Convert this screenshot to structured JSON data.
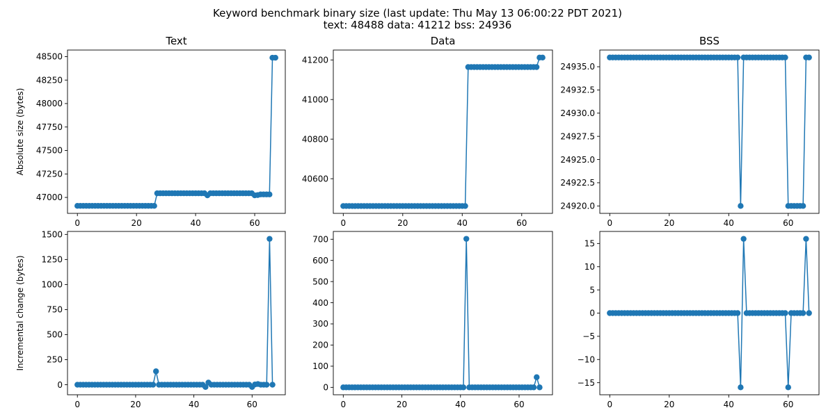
{
  "figure": {
    "title_line1": "Keyword benchmark binary size (last update: Thu May 13 06:00:22 PDT 2021)",
    "title_line2": "text: 48488 data: 41212 bss: 24936"
  },
  "chart_data": [
    {
      "id": "text_abs",
      "type": "line",
      "title": "Text",
      "ylabel": "Absolute size (bytes)",
      "xlabel": "",
      "xlim": [
        -3.35,
        70.35
      ],
      "ylim": [
        46830,
        48570
      ],
      "xticks": [
        0,
        20,
        40,
        60
      ],
      "yticks": [
        47000,
        47250,
        47500,
        47750,
        48000,
        48250,
        48500
      ],
      "ytick_labels": [
        "47000",
        "47250",
        "47500",
        "47750",
        "48000",
        "48250",
        "48500"
      ],
      "line_color": "#1f77b4",
      "markers": true,
      "grid": false,
      "segments": [
        {
          "from": 0,
          "to": 26,
          "value": 46910
        },
        {
          "from": 27,
          "to": 43,
          "value": 47044
        },
        {
          "from": 44,
          "to": 44,
          "value": 47022
        },
        {
          "from": 45,
          "to": 59,
          "value": 47044
        },
        {
          "from": 60,
          "to": 60,
          "value": 47022
        },
        {
          "from": 61,
          "to": 61,
          "value": 47025
        },
        {
          "from": 62,
          "to": 65,
          "value": 47032
        },
        {
          "from": 66,
          "to": 67,
          "value": 48488
        }
      ]
    },
    {
      "id": "data_abs",
      "type": "line",
      "title": "Data",
      "ylabel": "",
      "xlabel": "",
      "xlim": [
        -3.35,
        70.35
      ],
      "ylim": [
        40425,
        41250
      ],
      "xticks": [
        0,
        20,
        40,
        60
      ],
      "yticks": [
        40600,
        40800,
        41000,
        41200
      ],
      "ytick_labels": [
        "40600",
        "40800",
        "41000",
        "41200"
      ],
      "line_color": "#1f77b4",
      "markers": true,
      "grid": false,
      "segments": [
        {
          "from": 0,
          "to": 41,
          "value": 40462
        },
        {
          "from": 42,
          "to": 65,
          "value": 41164
        },
        {
          "from": 66,
          "to": 67,
          "value": 41212
        }
      ]
    },
    {
      "id": "bss_abs",
      "type": "line",
      "title": "BSS",
      "ylabel": "",
      "xlabel": "",
      "xlim": [
        -3.35,
        70.35
      ],
      "ylim": [
        24919.2,
        24936.8
      ],
      "xticks": [
        0,
        20,
        40,
        60
      ],
      "yticks": [
        24920.0,
        24922.5,
        24925.0,
        24927.5,
        24930.0,
        24932.5,
        24935.0
      ],
      "ytick_labels": [
        "24920.0",
        "24922.5",
        "24925.0",
        "24927.5",
        "24930.0",
        "24932.5",
        "24935.0"
      ],
      "line_color": "#1f77b4",
      "markers": true,
      "grid": false,
      "segments": [
        {
          "from": 0,
          "to": 43,
          "value": 24936
        },
        {
          "from": 44,
          "to": 44,
          "value": 24920
        },
        {
          "from": 45,
          "to": 59,
          "value": 24936
        },
        {
          "from": 60,
          "to": 65,
          "value": 24920
        },
        {
          "from": 66,
          "to": 67,
          "value": 24936
        }
      ]
    },
    {
      "id": "text_inc",
      "type": "line",
      "title": "",
      "ylabel": "Incremental change (bytes)",
      "xlabel": "",
      "xlim": [
        -3.4,
        71.4
      ],
      "ylim": [
        -100,
        1530
      ],
      "xticks": [
        0,
        20,
        40,
        60
      ],
      "yticks": [
        0,
        250,
        500,
        750,
        1000,
        1250,
        1500
      ],
      "ytick_labels": [
        "0",
        "250",
        "500",
        "750",
        "1000",
        "1250",
        "1500"
      ],
      "line_color": "#1f77b4",
      "markers": true,
      "grid": false,
      "segments": [
        {
          "from": 0,
          "to": 26,
          "value": 0
        },
        {
          "from": 27,
          "to": 27,
          "value": 134
        },
        {
          "from": 28,
          "to": 43,
          "value": 0
        },
        {
          "from": 44,
          "to": 44,
          "value": -22
        },
        {
          "from": 45,
          "to": 45,
          "value": 22
        },
        {
          "from": 46,
          "to": 59,
          "value": 0
        },
        {
          "from": 60,
          "to": 60,
          "value": -22
        },
        {
          "from": 61,
          "to": 61,
          "value": 3
        },
        {
          "from": 62,
          "to": 62,
          "value": 7
        },
        {
          "from": 63,
          "to": 65,
          "value": 0
        },
        {
          "from": 66,
          "to": 66,
          "value": 1456
        },
        {
          "from": 67,
          "to": 67,
          "value": 0
        }
      ]
    },
    {
      "id": "data_inc",
      "type": "line",
      "title": "",
      "ylabel": "",
      "xlabel": "",
      "xlim": [
        -3.4,
        71.4
      ],
      "ylim": [
        -35,
        737
      ],
      "xticks": [
        0,
        20,
        40,
        60
      ],
      "yticks": [
        0,
        100,
        200,
        300,
        400,
        500,
        600,
        700
      ],
      "ytick_labels": [
        "0",
        "100",
        "200",
        "300",
        "400",
        "500",
        "600",
        "700"
      ],
      "line_color": "#1f77b4",
      "markers": true,
      "grid": false,
      "segments": [
        {
          "from": 0,
          "to": 41,
          "value": 0
        },
        {
          "from": 42,
          "to": 42,
          "value": 702
        },
        {
          "from": 43,
          "to": 65,
          "value": 0
        },
        {
          "from": 66,
          "to": 66,
          "value": 48
        },
        {
          "from": 67,
          "to": 67,
          "value": 0
        }
      ]
    },
    {
      "id": "bss_inc",
      "type": "line",
      "title": "",
      "ylabel": "",
      "xlabel": "",
      "xlim": [
        -3.35,
        70.35
      ],
      "ylim": [
        -17.6,
        17.6
      ],
      "xticks": [
        0,
        20,
        40,
        60
      ],
      "yticks": [
        -15,
        -10,
        -5,
        0,
        5,
        10,
        15
      ],
      "ytick_labels": [
        "−15",
        "−10",
        "−5",
        "0",
        "5",
        "10",
        "15"
      ],
      "line_color": "#1f77b4",
      "markers": true,
      "grid": false,
      "segments": [
        {
          "from": 0,
          "to": 43,
          "value": 0
        },
        {
          "from": 44,
          "to": 44,
          "value": -16
        },
        {
          "from": 45,
          "to": 45,
          "value": 16
        },
        {
          "from": 46,
          "to": 59,
          "value": 0
        },
        {
          "from": 60,
          "to": 60,
          "value": -16
        },
        {
          "from": 61,
          "to": 65,
          "value": 0
        },
        {
          "from": 66,
          "to": 66,
          "value": 16
        },
        {
          "from": 67,
          "to": 67,
          "value": 0
        }
      ]
    }
  ]
}
